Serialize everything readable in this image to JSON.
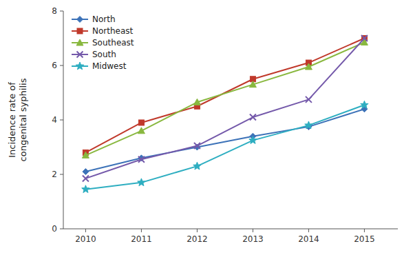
{
  "chart_data": {
    "type": "line",
    "y_label": "Incidence rate of\ncongenital syphilis",
    "x": [
      2010,
      2011,
      2012,
      2013,
      2014,
      2015
    ],
    "xlim": [
      2009.6,
      2015.6
    ],
    "xticks": [
      2010,
      2011,
      2012,
      2013,
      2014,
      2015
    ],
    "ylim": [
      0,
      8
    ],
    "yticks": [
      0,
      2,
      4,
      6,
      8
    ],
    "grid": false,
    "legend": "upper left",
    "series": [
      {
        "name": "North",
        "color": "#3c72b8",
        "marker": "diamond",
        "values": [
          2.1,
          2.6,
          3.0,
          3.4,
          3.75,
          4.4
        ]
      },
      {
        "name": "Northeast",
        "color": "#c0392b",
        "marker": "square",
        "values": [
          2.8,
          3.9,
          4.5,
          5.5,
          6.1,
          7.0
        ]
      },
      {
        "name": "Southeast",
        "color": "#89b83f",
        "marker": "triangle",
        "values": [
          2.7,
          3.6,
          4.65,
          5.3,
          5.95,
          6.85
        ]
      },
      {
        "name": "South",
        "color": "#7459aa",
        "marker": "x",
        "values": [
          1.85,
          2.55,
          3.05,
          4.1,
          4.75,
          7.0
        ]
      },
      {
        "name": "Midwest",
        "color": "#2eaec1",
        "marker": "star",
        "values": [
          1.45,
          1.7,
          2.3,
          3.25,
          3.8,
          4.55
        ]
      }
    ]
  }
}
